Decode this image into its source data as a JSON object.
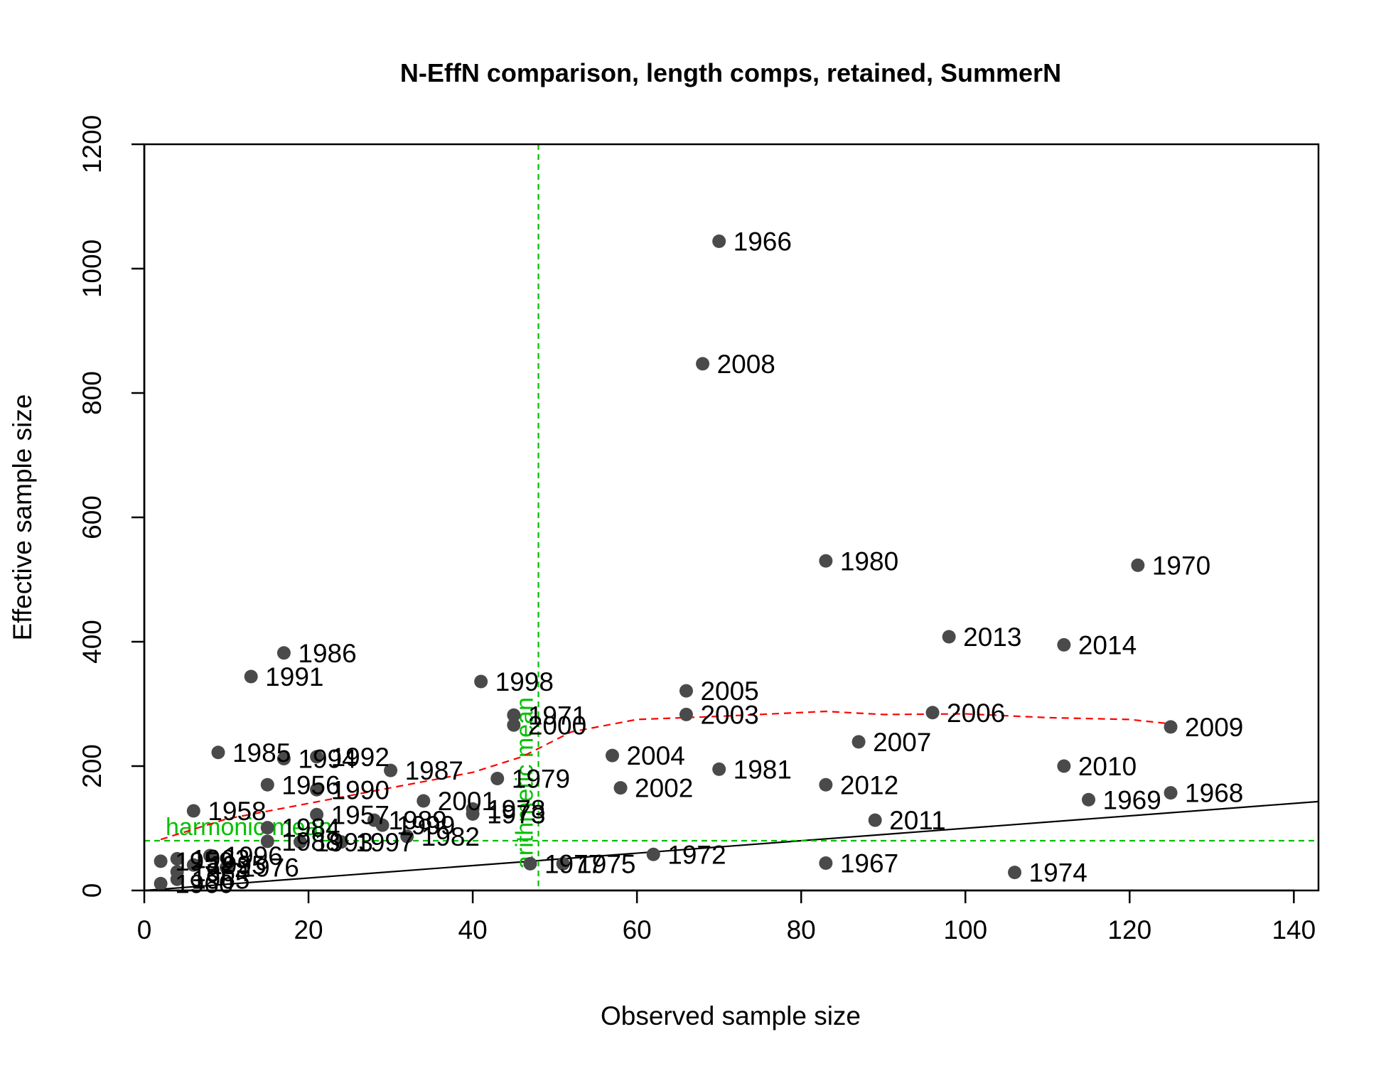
{
  "chart_data": {
    "type": "scatter",
    "title": "N-EffN comparison, length comps, retained, SummerN",
    "xlabel": "Observed sample size",
    "ylabel": "Effective sample size",
    "xlim": [
      0,
      143
    ],
    "ylim": [
      0,
      1200
    ],
    "xticks": [
      0,
      20,
      40,
      60,
      80,
      100,
      120,
      140
    ],
    "yticks": [
      0,
      200,
      400,
      600,
      800,
      1000,
      1200
    ],
    "grid": false,
    "colors": {
      "point": "#4a4a4a",
      "identity_line": "#000000",
      "smoother": "#ff0000",
      "reference": "#00c000"
    },
    "points": [
      {
        "label": "1966",
        "x": 70,
        "y": 1044
      },
      {
        "label": "2008",
        "x": 68,
        "y": 847
      },
      {
        "label": "1980",
        "x": 83,
        "y": 530
      },
      {
        "label": "1970",
        "x": 121,
        "y": 523
      },
      {
        "label": "2013",
        "x": 98,
        "y": 408
      },
      {
        "label": "2014",
        "x": 112,
        "y": 395
      },
      {
        "label": "1986",
        "x": 17,
        "y": 382
      },
      {
        "label": "1991",
        "x": 13,
        "y": 344
      },
      {
        "label": "1998",
        "x": 41,
        "y": 336
      },
      {
        "label": "2005",
        "x": 66,
        "y": 321
      },
      {
        "label": "2006",
        "x": 96,
        "y": 286
      },
      {
        "label": "2003",
        "x": 66,
        "y": 283
      },
      {
        "label": "1971",
        "x": 45,
        "y": 282
      },
      {
        "label": "2000",
        "x": 45,
        "y": 266
      },
      {
        "label": "2009",
        "x": 125,
        "y": 263
      },
      {
        "label": "2007",
        "x": 87,
        "y": 239
      },
      {
        "label": "1985",
        "x": 9,
        "y": 222
      },
      {
        "label": "2004",
        "x": 57,
        "y": 217
      },
      {
        "label": "1994",
        "x": 17,
        "y": 212
      },
      {
        "label": "1992",
        "x": 21,
        "y": 215
      },
      {
        "label": "2010",
        "x": 112,
        "y": 200
      },
      {
        "label": "1981",
        "x": 70,
        "y": 195
      },
      {
        "label": "1987",
        "x": 30,
        "y": 193
      },
      {
        "label": "1979",
        "x": 43,
        "y": 180
      },
      {
        "label": "2012",
        "x": 83,
        "y": 170
      },
      {
        "label": "1956",
        "x": 15,
        "y": 170
      },
      {
        "label": "2002",
        "x": 58,
        "y": 165
      },
      {
        "label": "1990",
        "x": 21,
        "y": 162
      },
      {
        "label": "1968",
        "x": 125,
        "y": 157
      },
      {
        "label": "1969",
        "x": 115,
        "y": 146
      },
      {
        "label": "2001",
        "x": 34,
        "y": 144
      },
      {
        "label": "1978",
        "x": 40,
        "y": 131
      },
      {
        "label": "1958",
        "x": 6,
        "y": 128
      },
      {
        "label": "1973",
        "x": 40,
        "y": 123
      },
      {
        "label": "1957",
        "x": 21,
        "y": 122
      },
      {
        "label": "2011",
        "x": 89,
        "y": 113
      },
      {
        "label": "1989",
        "x": 28,
        "y": 113
      },
      {
        "label": "1999",
        "x": 29,
        "y": 105
      },
      {
        "label": "1984",
        "x": 15,
        "y": 101
      },
      {
        "label": "1982",
        "x": 32,
        "y": 87
      },
      {
        "label": "1988",
        "x": 15,
        "y": 79
      },
      {
        "label": "1993",
        "x": 19,
        "y": 78
      },
      {
        "label": "1997",
        "x": 24,
        "y": 78
      },
      {
        "label": "1972",
        "x": 62,
        "y": 58
      },
      {
        "label": "1996",
        "x": 8,
        "y": 56
      },
      {
        "label": "1963",
        "x": 4,
        "y": 51
      },
      {
        "label": "1959",
        "x": 2,
        "y": 47
      },
      {
        "label": "1967",
        "x": 83,
        "y": 44
      },
      {
        "label": "1977",
        "x": 47,
        "y": 43
      },
      {
        "label": "1975",
        "x": 51,
        "y": 43
      },
      {
        "label": "1995",
        "x": 6,
        "y": 41
      },
      {
        "label": "1976",
        "x": 10,
        "y": 37
      },
      {
        "label": "1964",
        "x": 4,
        "y": 30
      },
      {
        "label": "1974",
        "x": 106,
        "y": 29
      },
      {
        "label": "1965",
        "x": 4,
        "y": 18
      },
      {
        "label": "1960",
        "x": 2,
        "y": 11
      }
    ],
    "smoother": {
      "x": [
        2,
        10,
        20,
        30,
        40,
        46,
        52,
        60,
        70,
        83,
        90,
        100,
        110,
        120,
        125
      ],
      "y": [
        82,
        115,
        140,
        165,
        190,
        215,
        255,
        275,
        280,
        288,
        283,
        284,
        278,
        275,
        268
      ]
    },
    "identity_line": {
      "x": [
        0,
        143
      ],
      "y": [
        0,
        143
      ]
    },
    "harmonic_mean": {
      "value": 80,
      "label": "harmonic mean"
    },
    "arithmetic_mean": {
      "value": 48,
      "label": "arithmetic mean"
    }
  }
}
